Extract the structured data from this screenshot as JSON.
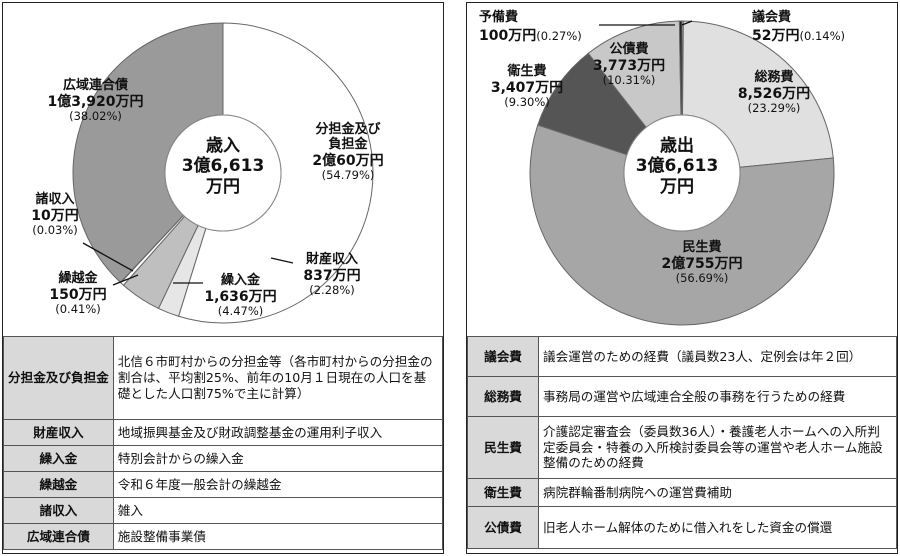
{
  "left": {
    "center": {
      "line1": "歳入",
      "line2": "3億6,613",
      "line3": "万円"
    },
    "chart_data": {
      "type": "pie",
      "title": "歳入",
      "total": "3億6,613万円",
      "slices": [
        {
          "name": "分担金及び負担金",
          "value": 20060,
          "display": "2億60万円",
          "percent": 54.79,
          "percent_text": "(54.79%)",
          "color": "#ffffff"
        },
        {
          "name": "財産収入",
          "value": 837,
          "display": "837万円",
          "percent": 2.28,
          "percent_text": "(2.28%)",
          "color": "#e6e6e6"
        },
        {
          "name": "繰入金",
          "value": 1636,
          "display": "1,636万円",
          "percent": 4.47,
          "percent_text": "(4.47%)",
          "color": "#bfbfbf"
        },
        {
          "name": "繰越金",
          "value": 150,
          "display": "150万円",
          "percent": 0.41,
          "percent_text": "(0.41%)",
          "color": "#ffffff"
        },
        {
          "name": "諸収入",
          "value": 10,
          "display": "10万円",
          "percent": 0.03,
          "percent_text": "(0.03%)",
          "color": "#ffffff"
        },
        {
          "name": "広域連合債",
          "value": 13920,
          "display": "1億3,920万円",
          "percent": 38.02,
          "percent_text": "(38.02%)",
          "color": "#9a9a9a"
        }
      ]
    },
    "labels": {
      "buntan": {
        "n1": "分担金及び",
        "n2": "負担金",
        "v": "2億60万円",
        "p": "(54.79%)"
      },
      "zaisan": {
        "n": "財産収入",
        "v": "837万円",
        "p": "(2.28%)"
      },
      "kurīre": {
        "n": "繰入金",
        "v": "1,636万円",
        "p": "(4.47%)"
      },
      "kurikoshi": {
        "n": "繰越金",
        "v": "150万円",
        "p": "(0.41%)"
      },
      "shoshu": {
        "n": "諸収入",
        "v": "10万円",
        "p": "(0.03%)"
      },
      "rengo": {
        "n": "広域連合債",
        "v": "1億3,920万円",
        "p": "(38.02%)"
      }
    },
    "table": [
      {
        "key": "分担金及び負担金",
        "desc": "北信６市町村からの分担金等（各市町村からの分担金の割合は、平均割25%、前年の10月１日現在の人口を基礎とした人口割75%で主に計算）"
      },
      {
        "key": "財産収入",
        "desc": "地域振興基金及び財政調整基金の運用利子収入"
      },
      {
        "key": "繰入金",
        "desc": "特別会計からの繰入金"
      },
      {
        "key": "繰越金",
        "desc": "令和６年度一般会計の繰越金"
      },
      {
        "key": "諸収入",
        "desc": "雑入"
      },
      {
        "key": "広域連合債",
        "desc": "施設整備事業債"
      }
    ]
  },
  "right": {
    "center": {
      "line1": "歳出",
      "line2": "3億6,613",
      "line3": "万円"
    },
    "chart_data": {
      "type": "pie",
      "title": "歳出",
      "total": "3億6,613万円",
      "slices": [
        {
          "name": "議会費",
          "value": 52,
          "display": "52万円",
          "percent": 0.14,
          "percent_text": "(0.14%)",
          "color": "#ffffff"
        },
        {
          "name": "総務費",
          "value": 8526,
          "display": "8,526万円",
          "percent": 23.29,
          "percent_text": "(23.29%)",
          "color": "#e0e0e0"
        },
        {
          "name": "民生費",
          "value": 20755,
          "display": "2億755万円",
          "percent": 56.69,
          "percent_text": "(56.69%)",
          "color": "#a6a6a6"
        },
        {
          "name": "衛生費",
          "value": 3407,
          "display": "3,407万円",
          "percent": 9.3,
          "percent_text": "(9.30%)",
          "color": "#555555"
        },
        {
          "name": "公債費",
          "value": 3773,
          "display": "3,773万円",
          "percent": 10.31,
          "percent_text": "(10.31%)",
          "color": "#c8c8c8"
        },
        {
          "name": "予備費",
          "value": 100,
          "display": "100万円",
          "percent": 0.27,
          "percent_text": "(0.27%)",
          "color": "#222222"
        }
      ]
    },
    "labels": {
      "gikai": {
        "n": "議会費",
        "v": "52万円",
        "p": "(0.14%)"
      },
      "somu": {
        "n": "総務費",
        "v": "8,526万円",
        "p": "(23.29%)"
      },
      "minsei": {
        "n": "民生費",
        "v": "2億755万円",
        "p": "(56.69%)"
      },
      "eisei": {
        "n": "衛生費",
        "v": "3,407万円",
        "p": "(9.30%)"
      },
      "kosai": {
        "n": "公債費",
        "v": "3,773万円",
        "p": "(10.31%)"
      },
      "yobi": {
        "n": "予備費",
        "v": "100万円",
        "p": "(0.27%)"
      }
    },
    "table": [
      {
        "key": "議会費",
        "desc": "議会運営のための経費（議員数23人、定例会は年２回）"
      },
      {
        "key": "総務費",
        "desc": "事務局の運営や広域連合全般の事務を行うための経費"
      },
      {
        "key": "民生費",
        "desc": "介護認定審査会（委員数36人）・養護老人ホームへの入所判定委員会・特養の入所検討委員会等の運営や老人ホーム施設整備のための経費"
      },
      {
        "key": "衛生費",
        "desc": "病院群輪番制病院への運営費補助"
      },
      {
        "key": "公債費",
        "desc": "旧老人ホーム解体のために借入れをした資金の償還"
      }
    ]
  }
}
